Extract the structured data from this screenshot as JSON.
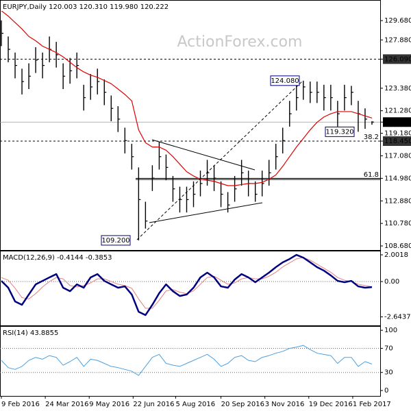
{
  "chart_data": [
    {
      "type": "ohlc",
      "title": "EURJPY,Daily  120.003 120.310 119.980 120.222",
      "watermark": "ActionForex.com",
      "color": "#000000",
      "x": [
        0,
        5,
        10,
        15,
        20,
        25,
        30,
        35,
        40,
        45,
        50,
        55,
        60,
        65,
        70,
        75,
        80,
        85,
        90,
        95,
        100,
        105,
        110,
        115,
        120,
        125,
        130,
        135,
        140,
        145,
        150,
        155,
        160,
        165,
        170,
        175,
        180,
        185,
        190,
        195,
        200,
        205,
        210,
        215,
        220,
        225,
        230,
        235,
        240,
        245,
        250,
        255,
        260,
        265,
        270
      ],
      "high": [
        129.7,
        128.2,
        126.7,
        125.2,
        125.7,
        127.2,
        126.7,
        128.2,
        127.7,
        125.7,
        126.2,
        126.7,
        123.7,
        124.7,
        125.2,
        124.2,
        122.7,
        121.7,
        119.7,
        118.2,
        116,
        112.8,
        116.2,
        118.4,
        117.2,
        115.2,
        114.2,
        114.2,
        114.7,
        115.7,
        116.7,
        116.2,
        114.7,
        113.7,
        115.2,
        116.7,
        115.7,
        114.7,
        115.7,
        116.7,
        118.2,
        119.7,
        122.2,
        123.7,
        124.08,
        124,
        124,
        123.7,
        123.7,
        122.2,
        123.7,
        123.6,
        122.2,
        121.5,
        120.31
      ],
      "low": [
        127.3,
        125.8,
        124.3,
        122.8,
        123.3,
        124.8,
        124.3,
        125.8,
        125.3,
        123.3,
        123.8,
        124.3,
        121.3,
        122.3,
        122.8,
        121.8,
        120.3,
        119.3,
        117.3,
        115.8,
        109.2,
        110.3,
        113.8,
        115.8,
        114.8,
        112.8,
        111.8,
        111.8,
        112.3,
        113.3,
        114.3,
        113.8,
        112.3,
        111.8,
        112.8,
        114.3,
        113.3,
        112.8,
        113.3,
        114.3,
        115.8,
        117.3,
        119.8,
        121.3,
        122.3,
        122,
        122,
        121.3,
        121.3,
        119.8,
        121.3,
        121.8,
        119.32,
        119.6,
        119.98
      ],
      "close": [
        128.5,
        127,
        125.5,
        124,
        124.5,
        126,
        125.5,
        127,
        126.5,
        124.5,
        125,
        125.5,
        122.5,
        123.5,
        124,
        123,
        121.5,
        120.5,
        118.5,
        117,
        113,
        111,
        115,
        117,
        116,
        114,
        113,
        113,
        113.5,
        114.5,
        115.5,
        115,
        113.5,
        112.5,
        114,
        115.5,
        114.5,
        113.5,
        114.5,
        115.5,
        117,
        118.5,
        121,
        122.5,
        123.5,
        123,
        123,
        122.5,
        122.5,
        121,
        122.5,
        123,
        121,
        120.5,
        120.222
      ],
      "series": [
        {
          "color": "#e00000",
          "width": 1.2,
          "values": [
            130.6,
            130.1,
            129.5,
            128.9,
            128.2,
            127.8,
            127.3,
            127,
            126.7,
            126.3,
            125.8,
            125.3,
            124.9,
            124.6,
            124.4,
            124.1,
            123.8,
            123.3,
            122.8,
            122.2,
            119.5,
            118.3,
            117.9,
            117.9,
            117.6,
            117,
            116.3,
            115.6,
            115.2,
            114.9,
            114.8,
            114.7,
            114.5,
            114.3,
            114.3,
            114.4,
            114.5,
            114.5,
            114.6,
            114.9,
            115.3,
            116.1,
            117,
            117.9,
            118.7,
            119.5,
            120.2,
            120.7,
            121,
            121.2,
            121.2,
            121.2,
            121,
            120.8,
            120.6
          ]
        }
      ],
      "xlim": [
        -1,
        276
      ],
      "ylim": [
        108.3,
        131.6
      ],
      "yticks": [
        {
          "value": 129.68,
          "label": "129.680"
        },
        {
          "value": 127.88,
          "label": "127.880"
        },
        {
          "value": 126.09,
          "label": "126.090",
          "boxed": true,
          "line": "dashed"
        },
        {
          "value": 123.38,
          "label": "123.380"
        },
        {
          "value": 121.28,
          "label": "121.280"
        },
        {
          "value": 120.222,
          "label": "120.222",
          "boxed": true,
          "line": "thin"
        },
        {
          "value": 119.18,
          "label": "119.180"
        },
        {
          "value": 118.45,
          "label": "118.450",
          "boxed": true,
          "line": "dashed"
        },
        {
          "value": 117.08,
          "label": "117.080"
        },
        {
          "value": 114.98,
          "label": "114.980",
          "line": "solid"
        },
        {
          "value": 112.88,
          "label": "112.880"
        },
        {
          "value": 110.78,
          "label": "110.780"
        },
        {
          "value": 108.68,
          "label": "108.680"
        }
      ],
      "annotations": [
        {
          "value": 124.08,
          "label": "124.080"
        },
        {
          "value": 119.32,
          "label": "119.320"
        },
        {
          "value": 109.2,
          "label": "109.200"
        }
      ],
      "fib_labels": [
        "38.2",
        "61.8"
      ]
    },
    {
      "type": "line",
      "title": "MACD(12,26,9) -0.4144 -0.3853",
      "x": [
        0,
        5,
        10,
        15,
        20,
        25,
        30,
        35,
        40,
        45,
        50,
        55,
        60,
        65,
        70,
        75,
        80,
        85,
        90,
        95,
        100,
        105,
        110,
        115,
        120,
        125,
        130,
        135,
        140,
        145,
        150,
        155,
        160,
        165,
        170,
        175,
        180,
        185,
        190,
        195,
        200,
        205,
        210,
        215,
        220,
        225,
        230,
        235,
        240,
        245,
        250,
        255,
        260,
        265,
        270
      ],
      "series": [
        {
          "color": "#e08080",
          "width": 1,
          "values": [
            0.3,
            0.1,
            -0.5,
            -1.2,
            -1.3,
            -0.9,
            -0.4,
            0,
            0.3,
            0.2,
            -0.3,
            -0.4,
            -0.3,
            -0.1,
            0.2,
            0.2,
            0,
            -0.2,
            -0.3,
            -0.5,
            -1.3,
            -2,
            -2,
            -1.4,
            -0.7,
            -0.6,
            -0.8,
            -0.9,
            -0.7,
            -0.2,
            0.3,
            0.4,
            0.1,
            -0.2,
            -0.1,
            0.2,
            0.3,
            0.2,
            0.2,
            0.4,
            0.7,
            1.1,
            1.4,
            1.7,
            1.8,
            1.6,
            1.3,
            1,
            0.7,
            0.3,
            0.1,
            0,
            -0.2,
            -0.3,
            -0.3853
          ]
        },
        {
          "color": "#000080",
          "width": 2.5,
          "values": [
            0.05,
            -0.46,
            -1.49,
            -1.74,
            -0.97,
            -0.21,
            0.05,
            0.31,
            0.56,
            -0.46,
            -0.72,
            -0.21,
            -0.46,
            0.31,
            0.56,
            0.05,
            -0.21,
            -0.46,
            -0.36,
            -0.97,
            -2.26,
            -2.51,
            -1.74,
            -0.87,
            -0.21,
            -0.72,
            -1.08,
            -0.97,
            -0.46,
            0.31,
            0.67,
            0.31,
            -0.36,
            -0.46,
            0.15,
            0.56,
            0.31,
            -0.05,
            0.31,
            0.67,
            1.08,
            1.44,
            1.69,
            2,
            1.79,
            1.44,
            1.08,
            0.82,
            0.46,
            0.05,
            -0.05,
            0.05,
            -0.36,
            -0.46,
            -0.4144
          ]
        }
      ],
      "xlim": [
        -1,
        276
      ],
      "ylim": [
        -3.28,
        2.31
      ],
      "yticks": [
        2.0018,
        {
          "value": 0,
          "label": "0.00",
          "line": "dotted"
        },
        -2.6437
      ]
    },
    {
      "type": "line",
      "title": "RSI(14) 43.8855",
      "x": [
        0,
        5,
        10,
        15,
        20,
        25,
        30,
        35,
        40,
        45,
        50,
        55,
        60,
        65,
        70,
        75,
        80,
        85,
        90,
        95,
        100,
        105,
        110,
        115,
        120,
        125,
        130,
        135,
        140,
        145,
        150,
        155,
        160,
        165,
        170,
        175,
        180,
        185,
        190,
        195,
        200,
        205,
        210,
        215,
        220,
        225,
        230,
        235,
        240,
        245,
        250,
        255,
        260,
        265,
        270
      ],
      "series": [
        {
          "color": "#4aa0e0",
          "width": 1,
          "values": [
            50,
            38,
            35,
            40,
            50,
            55,
            52,
            58,
            55,
            42,
            48,
            55,
            40,
            52,
            50,
            45,
            40,
            38,
            35,
            32,
            25,
            40,
            55,
            60,
            45,
            42,
            40,
            45,
            50,
            55,
            60,
            52,
            40,
            45,
            55,
            58,
            50,
            48,
            55,
            58,
            62,
            65,
            70,
            72,
            75,
            68,
            62,
            60,
            58,
            45,
            55,
            55,
            40,
            48,
            43.8855
          ]
        }
      ],
      "xlim": [
        -1,
        276
      ],
      "ylim": [
        -9,
        107
      ],
      "yticks": [
        100,
        {
          "value": 70,
          "label": "70",
          "line": "dotted"
        },
        {
          "value": 30,
          "label": "30",
          "line": "dotted"
        },
        0
      ],
      "xticks": [
        {
          "value": 0,
          "label": "9 Feb 2016"
        },
        {
          "value": 32,
          "label": "24 Mar 2016"
        },
        {
          "value": 64,
          "label": "9 May 2016"
        },
        {
          "value": 96,
          "label": "22 Jun 2016"
        },
        {
          "value": 127,
          "label": "5 Aug 2016"
        },
        {
          "value": 160,
          "label": "20 Sep 2016"
        },
        {
          "value": 192,
          "label": "3 Nov 2016"
        },
        {
          "value": 224,
          "label": "19 Dec 2016"
        },
        {
          "value": 256,
          "label": "1 Feb 2017"
        }
      ]
    }
  ]
}
